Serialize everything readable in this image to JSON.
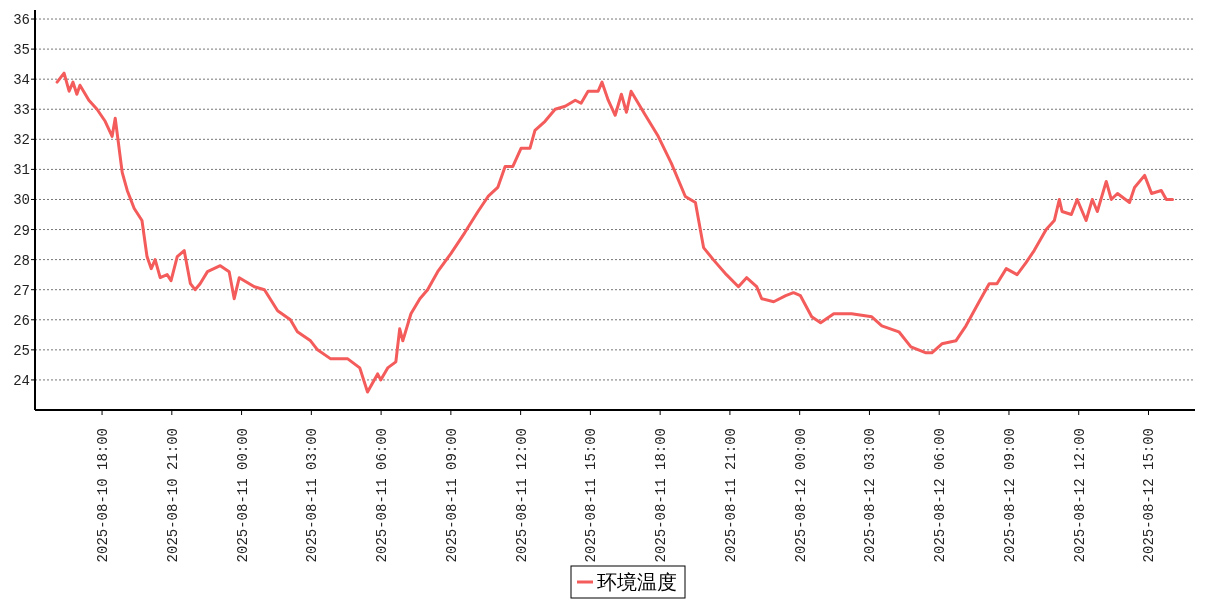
{
  "chart_data": {
    "type": "line",
    "x": [
      "2025-08-10T16:04",
      "2025-08-10T16:22",
      "2025-08-10T16:35",
      "2025-08-10T16:45",
      "2025-08-10T16:55",
      "2025-08-10T17:03",
      "2025-08-10T17:26",
      "2025-08-10T17:47",
      "2025-08-10T18:08",
      "2025-08-10T18:26",
      "2025-08-10T18:34",
      "2025-08-10T18:52",
      "2025-08-10T19:05",
      "2025-08-10T19:23",
      "2025-08-10T19:43",
      "2025-08-10T19:56",
      "2025-08-10T20:07",
      "2025-08-10T20:17",
      "2025-08-10T20:30",
      "2025-08-10T20:48",
      "2025-08-10T20:58",
      "2025-08-10T21:14",
      "2025-08-10T21:32",
      "2025-08-10T21:48",
      "2025-08-10T22:00",
      "2025-08-10T22:13",
      "2025-08-10T22:32",
      "2025-08-10T23:05",
      "2025-08-10T23:28",
      "2025-08-10T23:41",
      "2025-08-10T23:54",
      "2025-08-11T00:33",
      "2025-08-11T00:59",
      "2025-08-11T01:33",
      "2025-08-11T02:06",
      "2025-08-11T02:24",
      "2025-08-11T02:58",
      "2025-08-11T03:16",
      "2025-08-11T03:50",
      "2025-08-11T04:34",
      "2025-08-11T05:05",
      "2025-08-11T05:25",
      "2025-08-11T05:51",
      "2025-08-11T05:59",
      "2025-08-11T06:17",
      "2025-08-11T06:38",
      "2025-08-11T06:48",
      "2025-08-11T06:56",
      "2025-08-11T07:17",
      "2025-08-11T07:40",
      "2025-08-11T08:00",
      "2025-08-11T08:26",
      "2025-08-11T09:00",
      "2025-08-11T09:36",
      "2025-08-11T10:10",
      "2025-08-11T10:36",
      "2025-08-11T11:01",
      "2025-08-11T11:20",
      "2025-08-11T11:40",
      "2025-08-11T12:01",
      "2025-08-11T12:24",
      "2025-08-11T12:37",
      "2025-08-11T13:03",
      "2025-08-11T13:29",
      "2025-08-11T13:55",
      "2025-08-11T14:21",
      "2025-08-11T14:36",
      "2025-08-11T14:54",
      "2025-08-11T15:20",
      "2025-08-11T15:30",
      "2025-08-11T15:46",
      "2025-08-11T16:04",
      "2025-08-11T16:20",
      "2025-08-11T16:33",
      "2025-08-11T16:45",
      "2025-08-11T17:22",
      "2025-08-11T17:55",
      "2025-08-11T18:29",
      "2025-08-11T19:05",
      "2025-08-11T19:31",
      "2025-08-11T19:52",
      "2025-08-11T20:17",
      "2025-08-11T20:51",
      "2025-08-11T21:22",
      "2025-08-11T21:43",
      "2025-08-11T22:09",
      "2025-08-11T22:22",
      "2025-08-11T22:53",
      "2025-08-11T23:24",
      "2025-08-11T23:44",
      "2025-08-12T00:02",
      "2025-08-12T00:31",
      "2025-08-12T00:54",
      "2025-08-12T01:28",
      "2025-08-12T02:14",
      "2025-08-12T03:06",
      "2025-08-12T03:32",
      "2025-08-12T04:16",
      "2025-08-12T04:47",
      "2025-08-12T05:26",
      "2025-08-12T05:41",
      "2025-08-12T06:07",
      "2025-08-12T06:43",
      "2025-08-12T07:09",
      "2025-08-12T07:43",
      "2025-08-12T08:09",
      "2025-08-12T08:29",
      "2025-08-12T08:53",
      "2025-08-12T09:21",
      "2025-08-12T09:44",
      "2025-08-12T10:05",
      "2025-08-12T10:36",
      "2025-08-12T10:57",
      "2025-08-12T11:10",
      "2025-08-12T11:17",
      "2025-08-12T11:41",
      "2025-08-12T11:56",
      "2025-08-12T12:19",
      "2025-08-12T12:35",
      "2025-08-12T12:48",
      "2025-08-12T13:11",
      "2025-08-12T13:24",
      "2025-08-12T13:40",
      "2025-08-12T14:11",
      "2025-08-12T14:24",
      "2025-08-12T14:50",
      "2025-08-12T15:08",
      "2025-08-12T15:33",
      "2025-08-12T15:46",
      "2025-08-12T16:02"
    ],
    "series": [
      {
        "name": "环境温度",
        "color": "#f45b5b",
        "values": [
          33.9,
          34.2,
          33.6,
          33.9,
          33.5,
          33.8,
          33.3,
          33.0,
          32.6,
          32.1,
          32.7,
          30.9,
          30.3,
          29.7,
          29.3,
          28.1,
          27.7,
          28.0,
          27.4,
          27.5,
          27.3,
          28.1,
          28.3,
          27.2,
          27.0,
          27.2,
          27.6,
          27.8,
          27.6,
          26.7,
          27.4,
          27.1,
          27.0,
          26.3,
          26.0,
          25.6,
          25.3,
          25.0,
          24.7,
          24.7,
          24.4,
          23.6,
          24.2,
          24.0,
          24.4,
          24.6,
          25.7,
          25.3,
          26.2,
          26.7,
          27.0,
          27.6,
          28.2,
          28.9,
          29.6,
          30.1,
          30.4,
          31.1,
          31.1,
          31.7,
          31.7,
          32.3,
          32.6,
          33.0,
          33.1,
          33.3,
          33.2,
          33.6,
          33.6,
          33.9,
          33.3,
          32.8,
          33.5,
          32.9,
          33.6,
          32.8,
          32.1,
          31.2,
          30.1,
          29.9,
          28.4,
          28.0,
          27.5,
          27.1,
          27.4,
          27.1,
          26.7,
          26.6,
          26.8,
          26.9,
          26.8,
          26.1,
          25.9,
          26.2,
          26.2,
          26.1,
          25.8,
          25.6,
          25.1,
          24.9,
          24.9,
          25.2,
          25.3,
          25.8,
          26.6,
          27.2,
          27.2,
          27.7,
          27.5,
          27.9,
          28.3,
          29.0,
          29.3,
          30.0,
          29.6,
          29.5,
          30.0,
          29.3,
          30.0,
          29.6,
          30.6,
          30.0,
          30.2,
          29.9,
          30.4,
          30.8,
          30.2,
          30.3,
          30.0,
          30.0
        ]
      }
    ],
    "xlim": [
      "2025-08-10T15:07",
      "2025-08-12T17:00"
    ],
    "xticks": [
      {
        "value": "2025-08-10T18:00",
        "label": "2025-08-10 18:00"
      },
      {
        "value": "2025-08-10T21:00",
        "label": "2025-08-10 21:00"
      },
      {
        "value": "2025-08-11T00:00",
        "label": "2025-08-11 00:00"
      },
      {
        "value": "2025-08-11T03:00",
        "label": "2025-08-11 03:00"
      },
      {
        "value": "2025-08-11T06:00",
        "label": "2025-08-11 06:00"
      },
      {
        "value": "2025-08-11T09:00",
        "label": "2025-08-11 09:00"
      },
      {
        "value": "2025-08-11T12:00",
        "label": "2025-08-11 12:00"
      },
      {
        "value": "2025-08-11T15:00",
        "label": "2025-08-11 15:00"
      },
      {
        "value": "2025-08-11T18:00",
        "label": "2025-08-11 18:00"
      },
      {
        "value": "2025-08-11T21:00",
        "label": "2025-08-11 21:00"
      },
      {
        "value": "2025-08-12T00:00",
        "label": "2025-08-12 00:00"
      },
      {
        "value": "2025-08-12T03:00",
        "label": "2025-08-12 03:00"
      },
      {
        "value": "2025-08-12T06:00",
        "label": "2025-08-12 06:00"
      },
      {
        "value": "2025-08-12T09:00",
        "label": "2025-08-12 09:00"
      },
      {
        "value": "2025-08-12T12:00",
        "label": "2025-08-12 12:00"
      },
      {
        "value": "2025-08-12T15:00",
        "label": "2025-08-12 15:00"
      }
    ],
    "ylim": [
      23,
      36.3
    ],
    "yticks": [
      24,
      25,
      26,
      27,
      28,
      29,
      30,
      31,
      32,
      33,
      34,
      35,
      36
    ],
    "grid": "y",
    "legend": "bottom"
  }
}
